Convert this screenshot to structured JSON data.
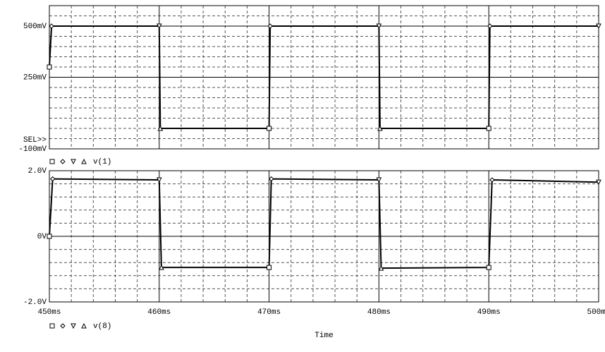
{
  "chart_data": [
    {
      "type": "line",
      "x": [
        450,
        450.2,
        460,
        460.1,
        470,
        470.1,
        480,
        480.1,
        490,
        490.1,
        500
      ],
      "series": [
        {
          "name": "v(1)",
          "color": "#000000",
          "values": [
            300,
            500,
            500,
            0,
            0,
            500,
            500,
            0,
            0,
            500,
            500
          ]
        }
      ],
      "legend_markers": [
        "square",
        "diamond",
        "triangle-down",
        "triangle-up"
      ],
      "xlim": [
        450,
        500
      ],
      "xticks": [
        450,
        460,
        470,
        480,
        490,
        500
      ],
      "xminorticks": [
        452,
        454,
        456,
        458,
        462,
        464,
        466,
        468,
        472,
        474,
        476,
        478,
        482,
        484,
        486,
        488,
        492,
        494,
        496,
        498
      ],
      "ylim": [
        -100,
        600
      ],
      "yticks": [
        {
          "value": 500,
          "label": "500mV"
        },
        {
          "value": 250,
          "label": "250mV"
        },
        {
          "value": -100,
          "label": "-100mV"
        }
      ],
      "yminorticks": [
        -50,
        0,
        50,
        100,
        150,
        200,
        300,
        350,
        400,
        450,
        550
      ],
      "annotation": "SEL>>",
      "grid": true
    },
    {
      "type": "line",
      "x": [
        450,
        450.3,
        460,
        460.2,
        470,
        470.2,
        480,
        480.2,
        490,
        490.3,
        500
      ],
      "series": [
        {
          "name": "v(8)",
          "color": "#000000",
          "values": [
            0,
            1.75,
            1.72,
            -0.95,
            -0.95,
            1.75,
            1.72,
            -0.97,
            -0.95,
            1.72,
            1.65
          ]
        }
      ],
      "legend_markers": [
        "square",
        "diamond",
        "triangle-down",
        "triangle-up"
      ],
      "xlim": [
        450,
        500
      ],
      "xticks": [
        {
          "value": 450,
          "label": "450ms"
        },
        {
          "value": 460,
          "label": "460ms"
        },
        {
          "value": 470,
          "label": "470ms"
        },
        {
          "value": 480,
          "label": "480ms"
        },
        {
          "value": 490,
          "label": "490ms"
        },
        {
          "value": 500,
          "label": "500ms"
        }
      ],
      "xminorticks": [
        452,
        454,
        456,
        458,
        462,
        464,
        466,
        468,
        472,
        474,
        476,
        478,
        482,
        484,
        486,
        488,
        492,
        494,
        496,
        498
      ],
      "ylim": [
        -2,
        2
      ],
      "yticks": [
        {
          "value": 2,
          "label": "2.0V"
        },
        {
          "value": 0,
          "label": "0V"
        },
        {
          "value": -2,
          "label": "-2.0V"
        }
      ],
      "yminorticks": [
        -1.6,
        -1.2,
        -0.8,
        -0.4,
        0.4,
        0.8,
        1.2,
        1.6
      ],
      "xlabel": "Time",
      "grid": true
    }
  ]
}
